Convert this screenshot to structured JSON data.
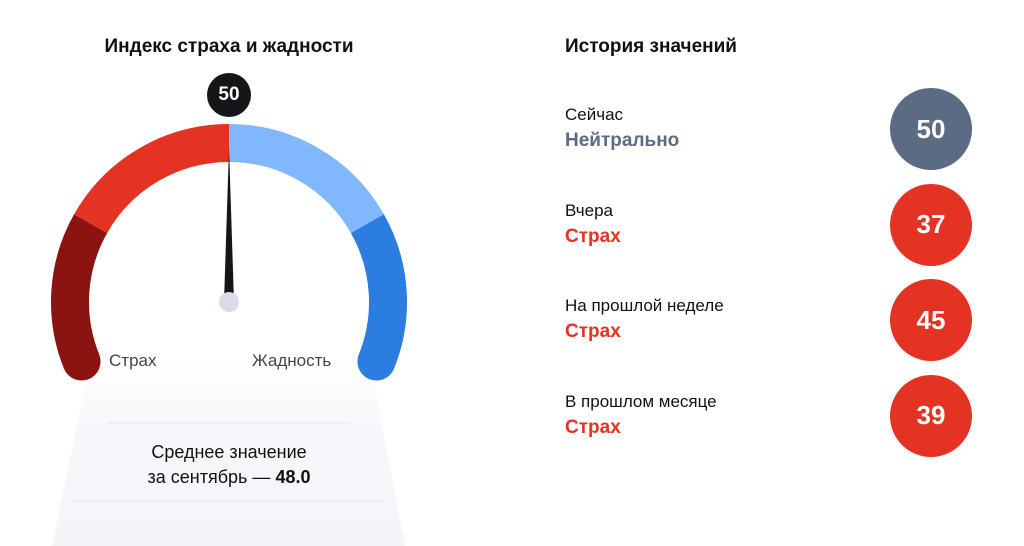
{
  "gauge": {
    "title": "Индекс страха и жадности",
    "value": 50,
    "value_label": "50",
    "min": 0,
    "max": 100,
    "left_label": "Страх",
    "right_label": "Жадность",
    "segments": [
      {
        "from": 0,
        "to": 23,
        "color": "#8b1410"
      },
      {
        "from": 23,
        "to": 50,
        "color": "#e43323"
      },
      {
        "from": 50,
        "to": 77,
        "color": "#80b7ff"
      },
      {
        "from": 77,
        "to": 100,
        "color": "#2b7de0"
      }
    ],
    "needle_color": "#15161a",
    "hub_color": "#d9dce6",
    "average_line1": "Среднее значение",
    "average_line2": "за сентябрь —",
    "average_value": "48.0"
  },
  "history": {
    "title": "История значений",
    "items": [
      {
        "label": "Сейчас",
        "status": "Нейтрально",
        "value": "50",
        "color": "#5b6b84"
      },
      {
        "label": "Вчера",
        "status": "Страх",
        "value": "37",
        "color": "#e43323"
      },
      {
        "label": "На прошлой неделе",
        "status": "Страх",
        "value": "45",
        "color": "#e43323"
      },
      {
        "label": "В прошлом месяце",
        "status": "Страх",
        "value": "39",
        "color": "#e43323"
      }
    ]
  }
}
